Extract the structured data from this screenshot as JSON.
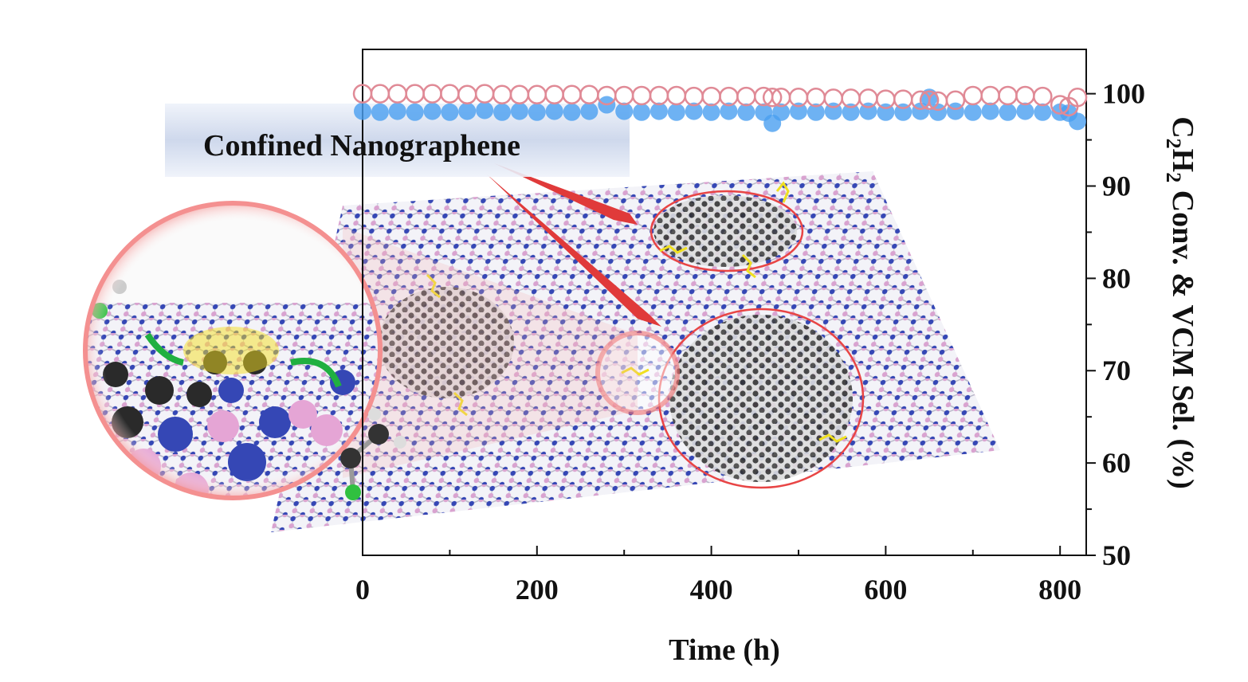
{
  "chart_data": {
    "type": "scatter",
    "title": "",
    "xlabel": "Time (h)",
    "ylabel": "C2H2 Conv. & VCM Sel. (%)",
    "ylabel_parts": {
      "pre": "C",
      "sub1": "2",
      "mid": "H",
      "sub2": "2",
      "post": " Conv. & VCM Sel. (%)"
    },
    "xlim": [
      0,
      830
    ],
    "ylim": [
      50,
      104.8
    ],
    "xticks": [
      0,
      200,
      400,
      600,
      800
    ],
    "xtick_labels": [
      "0",
      "200",
      "400",
      "600",
      "800"
    ],
    "yticks": [
      50,
      60,
      70,
      80,
      90,
      100
    ],
    "ytick_labels": [
      "50",
      "60",
      "70",
      "80",
      "90",
      "100"
    ],
    "yaxis_side": "right",
    "grid": false,
    "x": [
      0,
      20,
      40,
      60,
      80,
      100,
      120,
      140,
      160,
      180,
      200,
      220,
      240,
      260,
      280,
      300,
      320,
      340,
      360,
      380,
      400,
      420,
      440,
      460,
      470,
      480,
      500,
      520,
      540,
      560,
      580,
      600,
      620,
      640,
      650,
      660,
      680,
      700,
      720,
      740,
      760,
      780,
      800,
      810,
      820
    ],
    "series": [
      {
        "name": "C2H2 Conversion",
        "marker": "filled-circle",
        "color": "#4a9ff0",
        "values": [
          98.1,
          98.0,
          98.1,
          98.0,
          98.1,
          98.0,
          98.1,
          98.2,
          98.0,
          98.1,
          98.0,
          98.1,
          98.0,
          98.1,
          98.8,
          98.1,
          98.0,
          98.1,
          98.0,
          98.1,
          98.0,
          98.1,
          98.0,
          98.0,
          96.8,
          98.0,
          98.1,
          98.0,
          98.1,
          98.0,
          98.1,
          98.0,
          98.0,
          98.1,
          99.6,
          98.0,
          98.1,
          98.0,
          98.1,
          98.0,
          98.1,
          98.0,
          98.0,
          97.9,
          97.0
        ]
      },
      {
        "name": "VCM Selectivity",
        "marker": "open-circle",
        "color": "#e08a96",
        "values": [
          100.0,
          100.0,
          100.0,
          100.0,
          100.0,
          100.0,
          99.9,
          100.0,
          99.9,
          99.9,
          99.9,
          99.9,
          99.9,
          99.9,
          99.8,
          99.8,
          99.8,
          99.8,
          99.8,
          99.7,
          99.7,
          99.7,
          99.7,
          99.7,
          99.6,
          99.6,
          99.6,
          99.6,
          99.5,
          99.5,
          99.5,
          99.4,
          99.4,
          99.3,
          99.3,
          99.2,
          99.3,
          99.8,
          99.8,
          99.8,
          99.8,
          99.7,
          98.8,
          98.6,
          99.6
        ]
      }
    ],
    "annotations": [
      "Confined Nanographene"
    ]
  }
}
